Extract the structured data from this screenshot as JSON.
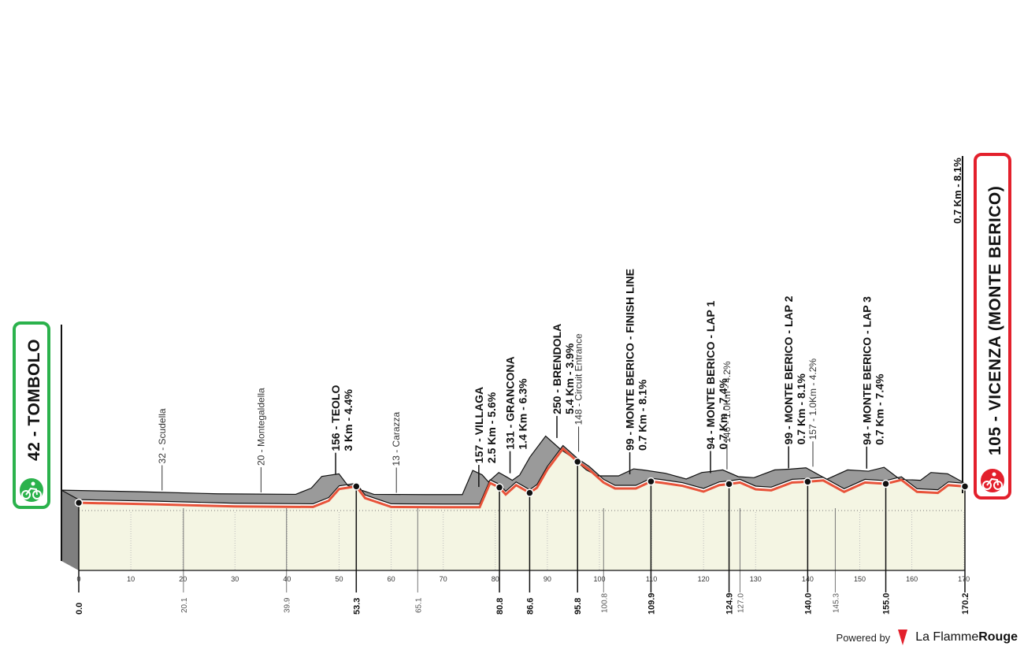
{
  "start": {
    "name": "42 - TOMBOLO"
  },
  "finish": {
    "name": "105 - VICENZA (MONTE BERICO)",
    "climb": "0.7 Km - 8.1%"
  },
  "footer": {
    "powered_by": "Powered by",
    "brand_light": "La Flamme",
    "brand_bold": "Rouge"
  },
  "colors": {
    "profile_fill": "#9a9a9a",
    "route_line": "#e8533a",
    "ground": "#f4f5e3",
    "start_box": "#2bb24c",
    "finish_box": "#e3202c"
  },
  "chart_data": {
    "type": "area",
    "title": "",
    "xlabel": "",
    "ylabel": "",
    "xlim": [
      0,
      170.2
    ],
    "x_ticks": [
      0,
      10,
      20,
      30,
      40,
      50,
      60,
      70,
      80,
      90,
      100,
      110,
      120,
      130,
      140,
      150,
      160,
      170
    ],
    "profile": {
      "x": [
        0,
        15,
        30,
        45,
        48,
        50,
        53.3,
        55,
        60,
        70,
        77,
        79,
        80.8,
        82,
        84,
        85.5,
        86.6,
        88,
        90,
        93,
        95.8,
        98,
        100.8,
        103,
        107,
        109.9,
        112,
        116,
        120,
        123,
        124.9,
        127,
        130,
        133,
        137,
        140,
        143,
        147,
        151,
        155,
        158,
        161,
        165,
        167,
        170.2
      ],
      "elevation": [
        42,
        36,
        28,
        26,
        50,
        95,
        105,
        60,
        26,
        25,
        25,
        118,
        101,
        74,
        110,
        93,
        80,
        100,
        170,
        250,
        200,
        170,
        120,
        97,
        97,
        124,
        119,
        107,
        85,
        110,
        114,
        120,
        94,
        90,
        120,
        123,
        128,
        84,
        120,
        115,
        130,
        84,
        80,
        110,
        105
      ]
    },
    "points": [
      {
        "km": "0.0",
        "elev": 42
      },
      {
        "km": "53.3",
        "elev": 105
      },
      {
        "km": "80.8",
        "elev": 101
      },
      {
        "km": "86.6",
        "elev": 80
      },
      {
        "km": "95.8",
        "elev": 200
      },
      {
        "km": "109.9",
        "elev": 124
      },
      {
        "km": "124.9",
        "elev": 114
      },
      {
        "km": "140.0",
        "elev": 123
      },
      {
        "km": "155.0",
        "elev": 115
      },
      {
        "km": "170.2",
        "elev": 105
      }
    ],
    "thin_markers": [
      {
        "km": "20.1"
      },
      {
        "km": "39.9"
      },
      {
        "km": "65.1"
      },
      {
        "km": "100.8"
      },
      {
        "km": "127.0"
      },
      {
        "km": "145.3"
      }
    ],
    "climbs": [
      {
        "x": 50,
        "name": "156 - TEOLO",
        "detail": "3 Km - 4.4%"
      },
      {
        "x": 77.5,
        "name": "157 - VILLAGA",
        "detail": "2.5 Km - 5.6%"
      },
      {
        "x": 83.5,
        "name": "131 - GRANCONA",
        "detail": "1.4 Km - 6.3%"
      },
      {
        "x": 92.5,
        "name": "250 - BRENDOLA",
        "detail": "5.4 Km - 3.9%"
      },
      {
        "x": 106.5,
        "name": "99 - MONTE BERICO - FINISH LINE",
        "detail": "0.7 Km - 8.1%"
      },
      {
        "x": 122,
        "name": "94 - MONTE BERICO - LAP 1",
        "detail": "0.7 Km - 7.4%"
      },
      {
        "x": 137,
        "name": "99 - MONTE BERICO - LAP 2",
        "detail": "0.7 Km - 8.1%"
      },
      {
        "x": 152,
        "name": "94 - MONTE BERICO - LAP 3",
        "detail": "0.7 Km - 7.4%"
      }
    ],
    "waypoints": [
      {
        "x": 17,
        "name": "32 - Scudella"
      },
      {
        "x": 36,
        "name": "20 - Montegaldella"
      },
      {
        "x": 62,
        "name": "13 - Carazza"
      },
      {
        "x": 97,
        "name": "148 - Circuit Entrance"
      },
      {
        "x": 125.5,
        "name": "146 - 1.0Km - 4.2%"
      },
      {
        "x": 142,
        "name": "157 - 1.0Km - 4.2%"
      }
    ]
  }
}
